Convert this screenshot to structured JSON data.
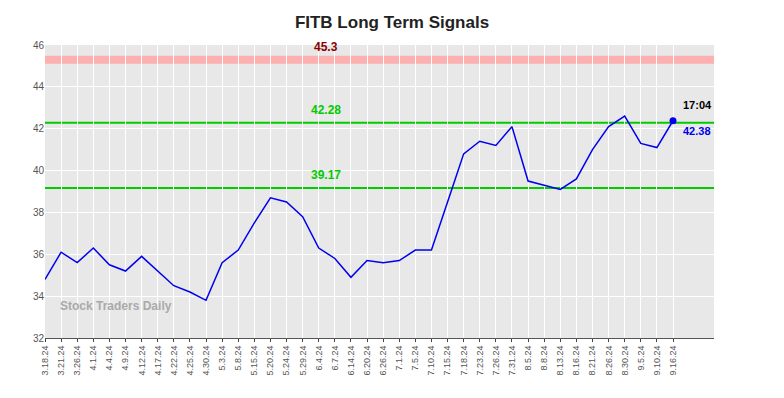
{
  "chart_data": {
    "type": "line",
    "title": "FITB Long Term Signals",
    "categories": [
      "3.18.24",
      "3.21.24",
      "3.26.24",
      "4.1.24",
      "4.4.24",
      "4.9.24",
      "4.12.24",
      "4.17.24",
      "4.22.24",
      "4.25.24",
      "4.30.24",
      "5.3.24",
      "5.8.24",
      "5.15.24",
      "5.20.24",
      "5.24.24",
      "5.29.24",
      "6.4.24",
      "6.7.24",
      "6.14.24",
      "6.20.24",
      "6.26.24",
      "7.1.24",
      "7.5.24",
      "7.10.24",
      "7.15.24",
      "7.18.24",
      "7.23.24",
      "7.26.24",
      "7.31.24",
      "8.5.24",
      "8.8.24",
      "8.13.24",
      "8.16.24",
      "8.21.24",
      "8.26.24",
      "8.30.24",
      "9.5.24",
      "9.10.24",
      "9.16.24"
    ],
    "values": [
      34.8,
      36.1,
      35.6,
      36.3,
      35.5,
      35.2,
      35.9,
      35.2,
      34.5,
      34.2,
      33.8,
      35.6,
      36.2,
      37.5,
      38.7,
      38.5,
      37.8,
      36.3,
      35.8,
      34.9,
      35.7,
      35.6,
      35.7,
      36.2,
      36.2,
      38.5,
      40.8,
      41.4,
      41.2,
      42.1,
      39.5,
      39.3,
      39.1,
      39.6,
      41.0,
      42.1,
      42.6,
      41.3,
      41.1,
      42.38
    ],
    "color": "#0000ee",
    "marker": "circle",
    "ylim": [
      32,
      46
    ],
    "yticks": [
      32,
      34,
      36,
      38,
      40,
      42,
      44,
      46
    ],
    "grid": true,
    "hlines": [
      {
        "value": 45.3,
        "label": "45.3",
        "color": "#ffaaaa",
        "label_color": "darkred"
      },
      {
        "value": 42.28,
        "label": "42.28",
        "color": "#00cc00",
        "label_color": "#00cc00"
      },
      {
        "value": 39.17,
        "label": "39.17",
        "color": "#00cc00",
        "label_color": "#00cc00"
      }
    ],
    "annotations": [
      {
        "text": "17:04",
        "color": "black"
      },
      {
        "text": "42.38",
        "color": "#0000ee"
      }
    ],
    "watermark": "Stock Traders Daily"
  }
}
